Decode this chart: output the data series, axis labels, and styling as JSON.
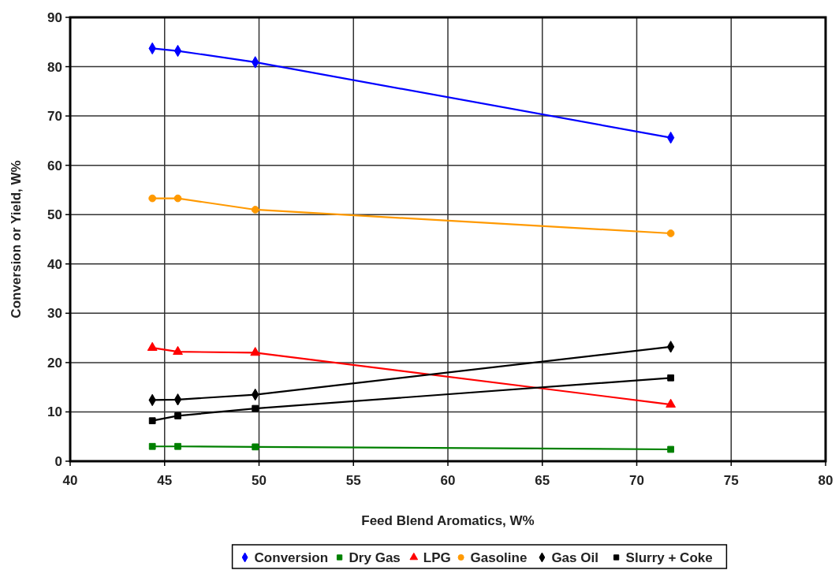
{
  "chart_data": {
    "type": "line",
    "xlabel": "Feed Blend Aromatics, W%",
    "ylabel": "Conversion or Yield, W%",
    "x": [
      44.35,
      45.7,
      49.8,
      71.8
    ],
    "xlim": [
      40,
      80
    ],
    "xticks": [
      40,
      45,
      50,
      55,
      60,
      65,
      70,
      75,
      80
    ],
    "ylim": [
      0,
      90
    ],
    "yticks": [
      0,
      10,
      20,
      30,
      40,
      50,
      60,
      70,
      80,
      90
    ],
    "grid": true,
    "legend": "bottom",
    "line_style": "solid",
    "series": [
      {
        "name": "Conversion",
        "color": "#0000ff",
        "marker": "diamond",
        "values": [
          83.7,
          83.2,
          80.9,
          65.6
        ]
      },
      {
        "name": "Dry Gas",
        "color": "#008000",
        "marker": "square",
        "values": [
          3.0,
          3.0,
          2.9,
          2.4
        ]
      },
      {
        "name": "LPG",
        "color": "#ff0000",
        "marker": "triangle",
        "values": [
          23.0,
          22.2,
          22.0,
          11.5
        ]
      },
      {
        "name": "Gasoline",
        "color": "#ff9900",
        "marker": "circle",
        "values": [
          53.3,
          53.3,
          51.0,
          46.2
        ]
      },
      {
        "name": "Gas Oil",
        "color": "#000000",
        "marker": "diamond",
        "values": [
          12.4,
          12.5,
          13.5,
          23.2
        ]
      },
      {
        "name": "Slurry + Coke",
        "color": "#000000",
        "marker": "square",
        "values": [
          8.2,
          9.2,
          10.7,
          16.9
        ]
      }
    ]
  }
}
